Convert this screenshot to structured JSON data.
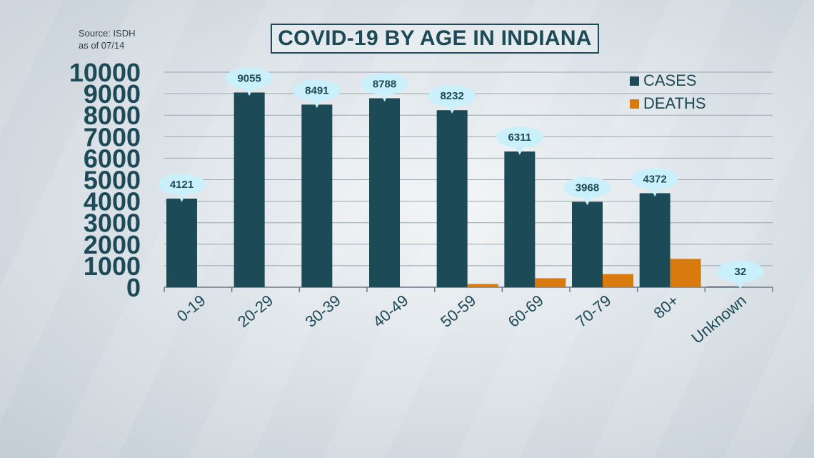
{
  "source": {
    "line1": "Source: ISDH",
    "line2": "as of 07/14"
  },
  "chart_data": {
    "type": "bar",
    "title": "COVID-19 BY AGE IN INDIANA",
    "categories": [
      "0-19",
      "20-29",
      "30-39",
      "40-49",
      "50-59",
      "60-69",
      "70-79",
      "80+",
      "Unknown"
    ],
    "series": [
      {
        "name": "CASES",
        "color": "#1c4a57",
        "values": [
          4121,
          9055,
          8491,
          8788,
          8232,
          6311,
          3968,
          4372,
          32
        ]
      },
      {
        "name": "DEATHS",
        "color": "#d97a0e",
        "values": [
          0,
          0,
          0,
          30,
          150,
          420,
          610,
          1320,
          0
        ]
      }
    ],
    "data_labels": [
      "4121",
      "9055",
      "8491",
      "8788",
      "8232",
      "6311",
      "3968",
      "4372",
      "32"
    ],
    "yticks": [
      "0",
      "1000",
      "2000",
      "3000",
      "4000",
      "5000",
      "6000",
      "7000",
      "8000",
      "9000",
      "10000"
    ],
    "ylim": [
      0,
      10000
    ],
    "grid": true,
    "legend": "top-right",
    "bubble_color": "#c9f0fb"
  }
}
